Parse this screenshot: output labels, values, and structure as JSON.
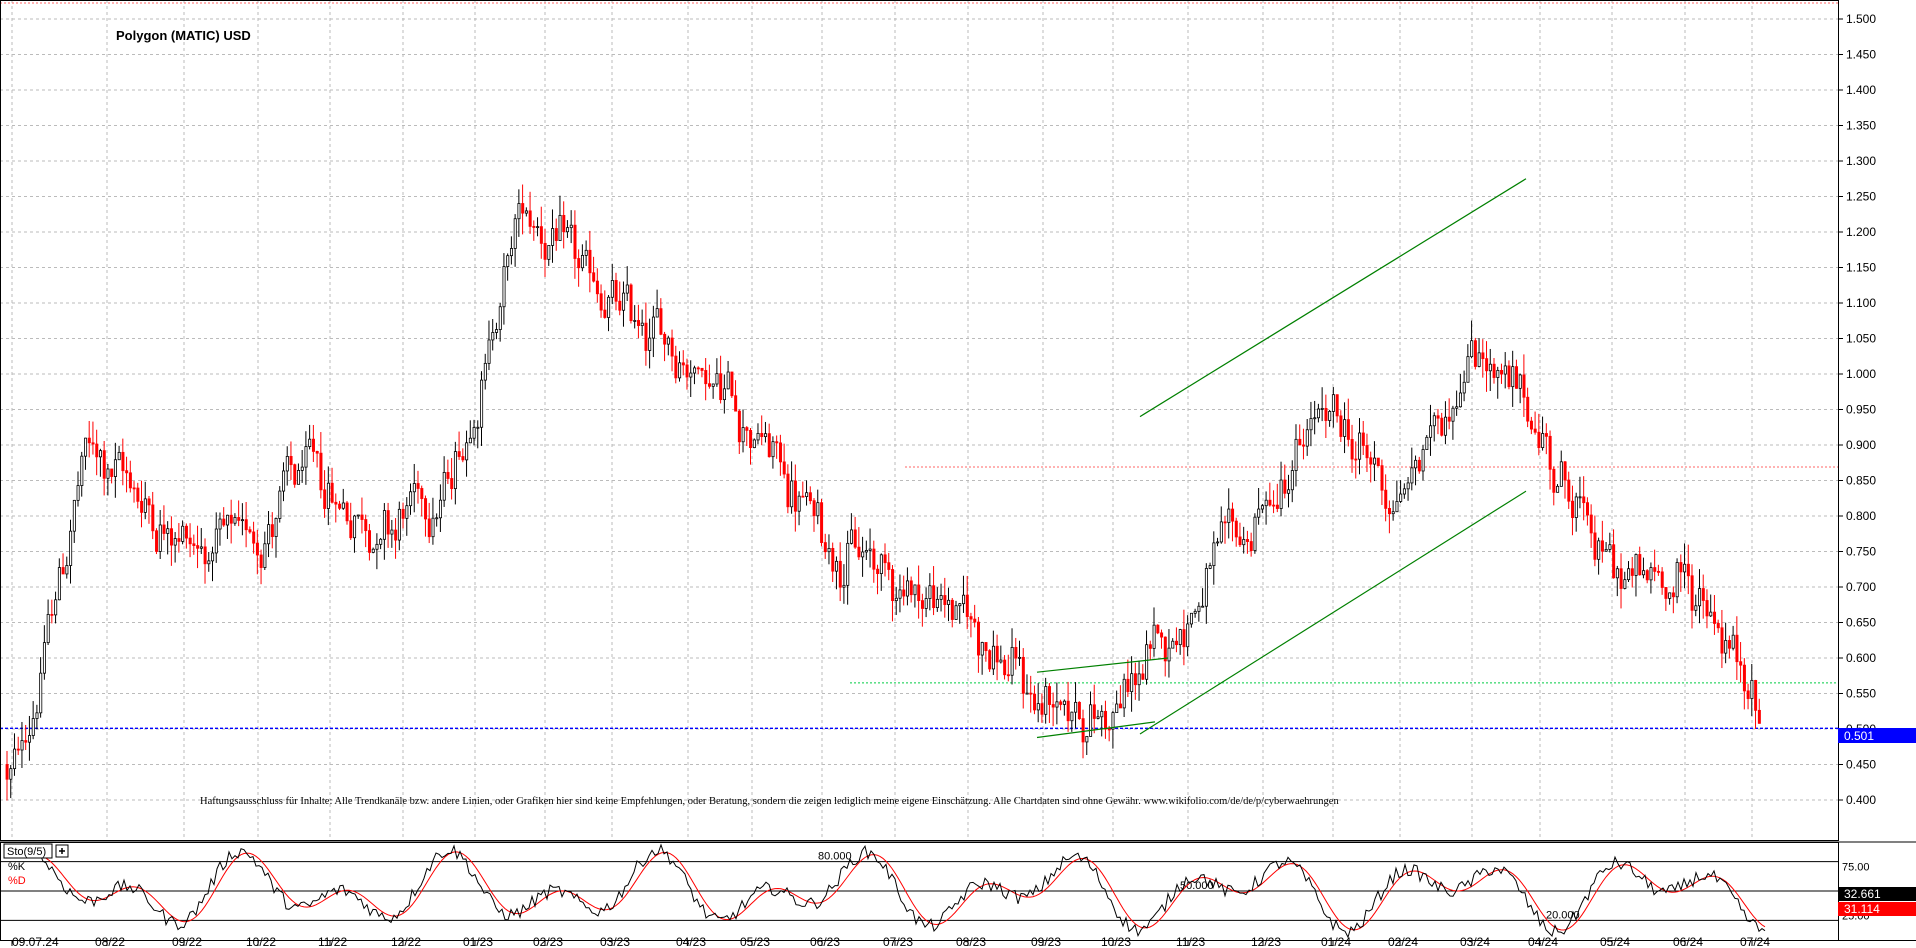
{
  "chart_data": [
    {
      "type": "candlestick",
      "title": "Polygon (MATIC) USD",
      "ylim": [
        0.35,
        1.52
      ],
      "y_ticks": [
        "1.500",
        "1.450",
        "1.400",
        "1.350",
        "1.300",
        "1.250",
        "1.200",
        "1.150",
        "1.100",
        "1.050",
        "1.000",
        "0.950",
        "0.900",
        "0.850",
        "0.800",
        "0.750",
        "0.700",
        "0.650",
        "0.600",
        "0.550",
        "0.500",
        "0.450",
        "0.400"
      ],
      "x_tick_labels": [
        "09.07.24",
        "08/22",
        "09/22",
        "10/22",
        "11/22",
        "12/22",
        "01/23",
        "02/23",
        "03/23",
        "04/23",
        "05/23",
        "06/23",
        "07/23",
        "08/23",
        "09/23",
        "10/23",
        "11/23",
        "12/23",
        "01/24",
        "02/24",
        "03/24",
        "04/24",
        "05/24",
        "06/24",
        "07/24"
      ],
      "grid": true,
      "candle_colors": {
        "up": "#000000",
        "down": "#ff0000"
      },
      "last_price": {
        "value": 0.501,
        "label": "0.501",
        "color": "#0000ff"
      },
      "reference_levels": [
        {
          "value": 0.565,
          "color": "#00cc44",
          "style": "dotted"
        },
        {
          "value": 0.869,
          "color": "#ff6666",
          "style": "dotted"
        }
      ],
      "trendlines": [
        {
          "from": [
            "01.08.23",
            0.58
          ],
          "to": [
            "13.10.23",
            0.6
          ],
          "color": "#008000"
        },
        {
          "from": [
            "01.08.23",
            0.488
          ],
          "to": [
            "05.10.23",
            0.51
          ],
          "color": "#008000"
        },
        {
          "from": [
            "25.10.23",
            0.94
          ],
          "to": [
            "15.04.24",
            1.275
          ],
          "color": "#008000"
        },
        {
          "from": [
            "15.10.23",
            0.493
          ],
          "to": [
            "15.04.24",
            0.835
          ],
          "color": "#008000"
        }
      ],
      "approx_monthly_path": [
        [
          "08/22",
          0.9
        ],
        [
          "09/22",
          0.8
        ],
        [
          "10/22",
          0.74
        ],
        [
          "11/22",
          0.86
        ],
        [
          "12/22",
          0.78
        ],
        [
          "01/23",
          0.85
        ],
        [
          "02/23",
          1.25
        ],
        [
          "03/23",
          1.1
        ],
        [
          "04/23",
          1.05
        ],
        [
          "05/23",
          0.95
        ],
        [
          "06/23",
          0.78
        ],
        [
          "07/23",
          0.72
        ],
        [
          "08/23",
          0.66
        ],
        [
          "09/23",
          0.54
        ],
        [
          "10/23",
          0.52
        ],
        [
          "11/23",
          0.66
        ],
        [
          "12/23",
          0.79
        ],
        [
          "01/24",
          0.95
        ],
        [
          "02/24",
          0.82
        ],
        [
          "03/24",
          1.05
        ],
        [
          "04/24",
          0.9
        ],
        [
          "05/24",
          0.7
        ],
        [
          "06/24",
          0.71
        ],
        [
          "07/24",
          0.501
        ]
      ],
      "disclaimer": "Haftungsausschluss für Inhalte: Alle Trendkanäle bzw. andere Linien, oder Grafiken hier sind keine Empfehlungen, oder Beratung, sondern die zeigen lediglich meine eigene Einschätzung. Alle Chartdaten sind ohne Gewähr.  www.wikifolio.com/de/de/p/cyberwaehrungen"
    },
    {
      "type": "line",
      "indicator": "Sto(9/5)",
      "ylim": [
        0,
        100
      ],
      "series": [
        {
          "name": "%K",
          "color": "#000000"
        },
        {
          "name": "%D",
          "color": "#ff0000"
        }
      ],
      "levels": [
        {
          "value": 80,
          "label": "80.000"
        },
        {
          "value": 50,
          "label": "50.000"
        },
        {
          "value": 20,
          "label": "20.000"
        }
      ],
      "y_ticks": [
        "75.00",
        "50.00",
        "25.00"
      ],
      "k_last": {
        "value": 32.661,
        "label": "32.661"
      },
      "d_last": {
        "value": 31.114,
        "label": "31.114"
      }
    }
  ]
}
